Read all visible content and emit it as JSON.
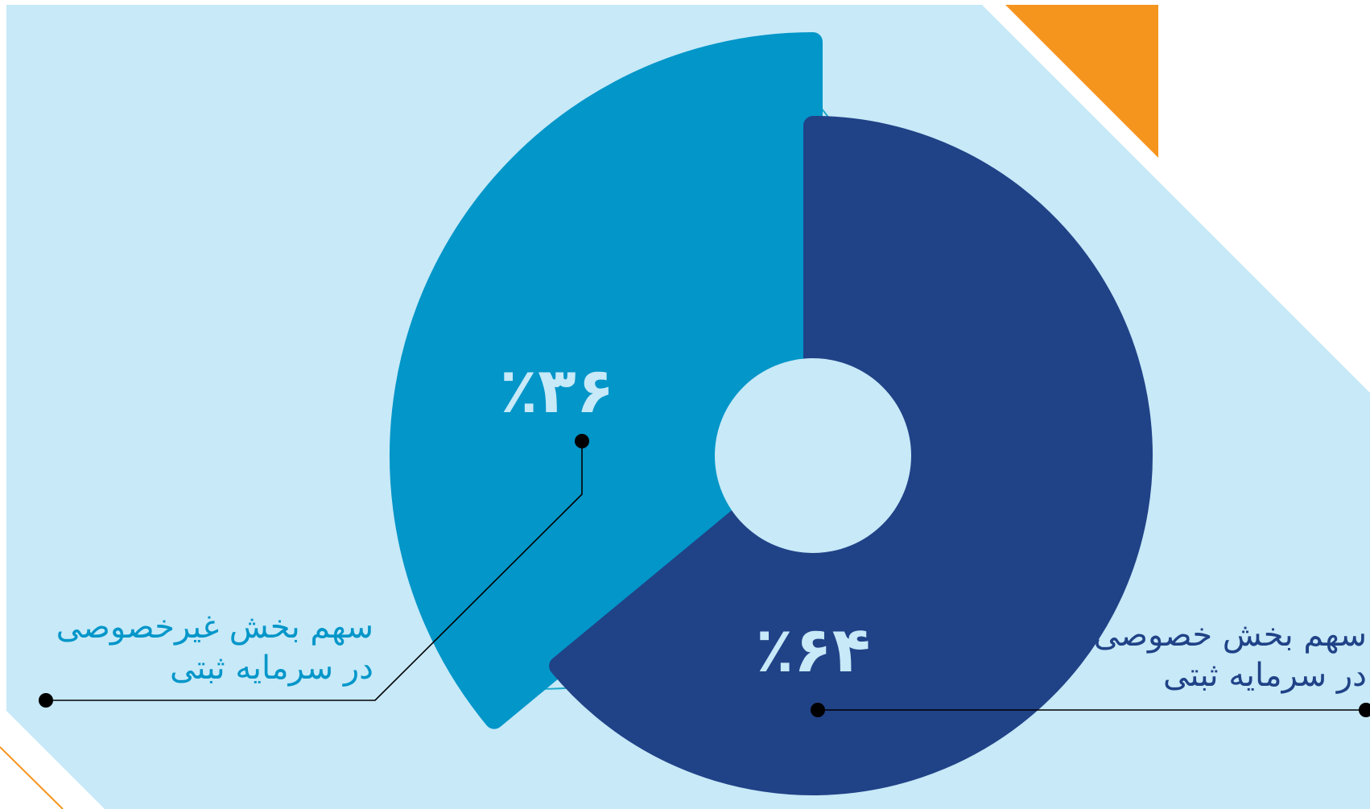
{
  "chart_data": {
    "type": "pie",
    "slices": [
      {
        "value": 36,
        "value_label": "٪۳۶",
        "label_line1": "سهم بخش غیرخصوصی",
        "label_line2": "در سرمایه ثبتی",
        "color": "#0296c9"
      },
      {
        "value": 64,
        "value_label": "٪۶۴",
        "label_line1": "سهم بخش خصوصی",
        "label_line2": "در سرمایه ثبتی",
        "color": "#204287"
      }
    ]
  },
  "colors": {
    "background": "#c7e9f8",
    "accent_orange": "#f6951e",
    "ring_line": "#1ba8c8",
    "leader_line": "#000000",
    "label_non_private": "#0296c9",
    "label_private": "#204287"
  }
}
